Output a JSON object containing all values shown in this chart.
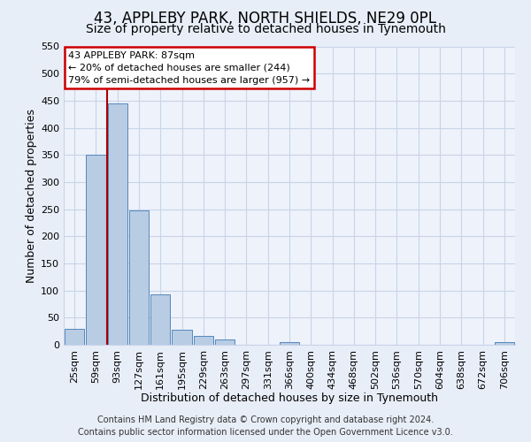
{
  "title": "43, APPLEBY PARK, NORTH SHIELDS, NE29 0PL",
  "subtitle": "Size of property relative to detached houses in Tynemouth",
  "xlabel": "Distribution of detached houses by size in Tynemouth",
  "ylabel": "Number of detached properties",
  "bar_labels": [
    "25sqm",
    "59sqm",
    "93sqm",
    "127sqm",
    "161sqm",
    "195sqm",
    "229sqm",
    "263sqm",
    "297sqm",
    "331sqm",
    "366sqm",
    "400sqm",
    "434sqm",
    "468sqm",
    "502sqm",
    "536sqm",
    "570sqm",
    "604sqm",
    "638sqm",
    "672sqm",
    "706sqm"
  ],
  "bar_values": [
    30,
    350,
    445,
    248,
    93,
    27,
    16,
    10,
    0,
    0,
    5,
    0,
    0,
    0,
    0,
    0,
    0,
    0,
    0,
    0,
    5
  ],
  "bar_color": "#b8cce4",
  "bar_edge_color": "#5588bb",
  "ylim": [
    0,
    550
  ],
  "yticks": [
    0,
    50,
    100,
    150,
    200,
    250,
    300,
    350,
    400,
    450,
    500,
    550
  ],
  "vline_x": 1.5,
  "vline_color": "#aa0000",
  "annotation_title": "43 APPLEBY PARK: 87sqm",
  "annotation_line2": "← 20% of detached houses are smaller (244)",
  "annotation_line3": "79% of semi-detached houses are larger (957) →",
  "footer_line1": "Contains HM Land Registry data © Crown copyright and database right 2024.",
  "footer_line2": "Contains public sector information licensed under the Open Government Licence v3.0.",
  "background_color": "#e8eef8",
  "plot_background_color": "#eef2fa",
  "grid_color": "#c8d4e8",
  "title_fontsize": 12,
  "subtitle_fontsize": 10,
  "axis_label_fontsize": 9,
  "tick_fontsize": 8,
  "footer_fontsize": 7
}
